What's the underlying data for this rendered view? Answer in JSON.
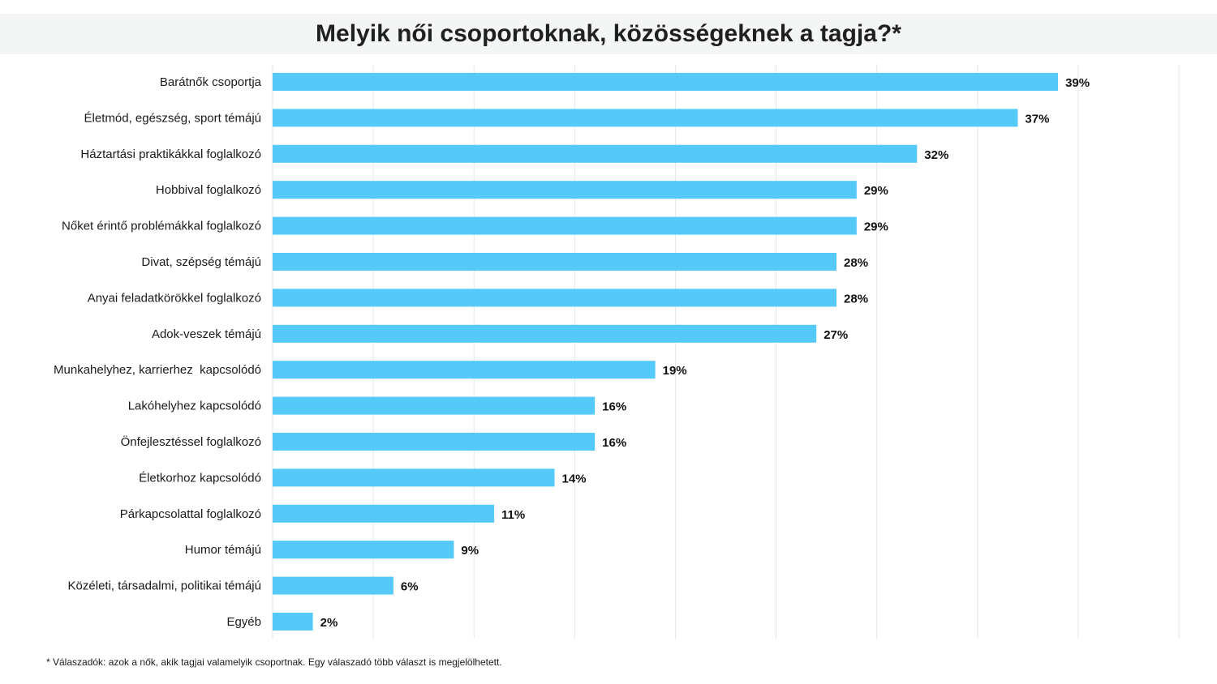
{
  "chart_data": {
    "type": "bar",
    "orientation": "horizontal",
    "title": "Melyik női csoportoknak, közösségeknek a tagja?*",
    "categories": [
      "Barátnők csoportja",
      "Életmód, egészség, sport témájú",
      "Háztartási praktikákkal foglalkozó",
      "Hobbival foglalkozó",
      "Nőket érintő problémákkal foglalkozó",
      "Divat, szépség témájú",
      "Anyai feladatkörökkel foglalkozó",
      "Adok-veszek témájú",
      "Munkahelyhez, karrierhez  kapcsolódó",
      "Lakóhelyhez kapcsolódó",
      "Önfejlesztéssel foglalkozó",
      "Életkorhoz kapcsolódó",
      "Párkapcsolattal foglalkozó",
      "Humor témájú",
      "Közéleti, társadalmi, politikai témájú",
      "Egyéb"
    ],
    "values": [
      39,
      37,
      32,
      29,
      29,
      28,
      28,
      27,
      19,
      16,
      16,
      14,
      11,
      9,
      6,
      2
    ],
    "value_labels": [
      "39%",
      "37%",
      "32%",
      "29%",
      "29%",
      "28%",
      "28%",
      "27%",
      "19%",
      "16%",
      "16%",
      "14%",
      "11%",
      "9%",
      "6%",
      "2%"
    ],
    "xlim": [
      0,
      45
    ],
    "grid": true,
    "bar_color": "#55caf9",
    "grid_color": "#dde9ee",
    "footnote": "* Válaszadók: azok a nők, akik tagjai valamelyik csoportnak. Egy válaszadó több választ is megjelölhetett."
  }
}
